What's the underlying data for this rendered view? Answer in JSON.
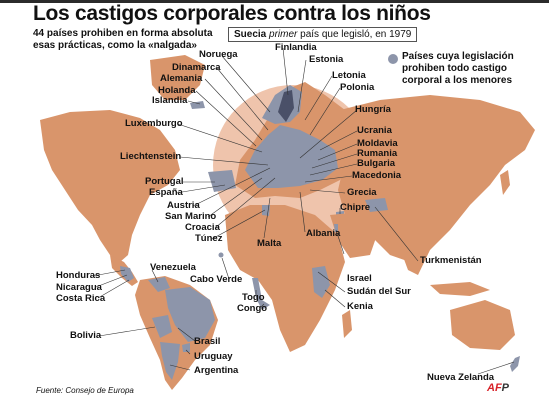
{
  "header": {
    "title": "Los castigos corporales contra los niños",
    "subtitle_count": "44 países",
    "subtitle_rest": "prohiben en forma absoluta esas prácticas, como la «nalgada»"
  },
  "callout": {
    "country": "Suecia",
    "italic": "primer",
    "rest": "país que legisló, en 1979"
  },
  "legend": {
    "label": "Países cuya legislación prohiben todo castigo corporal a los menores",
    "color": "#8d95aa"
  },
  "colors": {
    "land": "#d9956b",
    "ban": "#8d95aa",
    "sweden": "#4a5068",
    "highlight": "#e8a07a"
  },
  "countries": {
    "noruega": "Noruega",
    "finlandia": "Finlandia",
    "estonia": "Estonia",
    "dinamarca": "Dinamarca",
    "alemania": "Alemania",
    "letonia": "Letonia",
    "polonia": "Polonia",
    "holanda": "Holanda",
    "islandia": "Islandia",
    "hungria": "Hungría",
    "luxemburgo": "Luxemburgo",
    "ucrania": "Ucrania",
    "moldavia": "Moldavia",
    "rumania": "Rumania",
    "bulgaria": "Bulgaria",
    "liechtenstein": "Liechtenstein",
    "macedonia": "Macedonia",
    "portugal": "Portugal",
    "grecia": "Grecia",
    "espana": "España",
    "chipre": "Chipre",
    "austria": "Austria",
    "sanmarino": "San Marino",
    "croacia": "Croacia",
    "tunez": "Túnez",
    "malta": "Malta",
    "albania": "Albania",
    "turkmenistan": "Turkmenistán",
    "venezuela": "Venezuela",
    "honduras": "Honduras",
    "nicaragua": "Nicaragua",
    "costarica": "Costa Rica",
    "caboverde": "Cabo Verde",
    "israel": "Israel",
    "sudandelsur": "Sudán del Sur",
    "togo": "Togo",
    "congo": "Congo",
    "kenia": "Kenia",
    "bolivia": "Bolivia",
    "brasil": "Brasil",
    "uruguay": "Uruguay",
    "argentina": "Argentina",
    "nuevazelanda": "Nueva Zelanda"
  },
  "footer": {
    "source": "Fuente: Consejo de Europa",
    "agency_a": "AF",
    "agency_b": "P"
  }
}
